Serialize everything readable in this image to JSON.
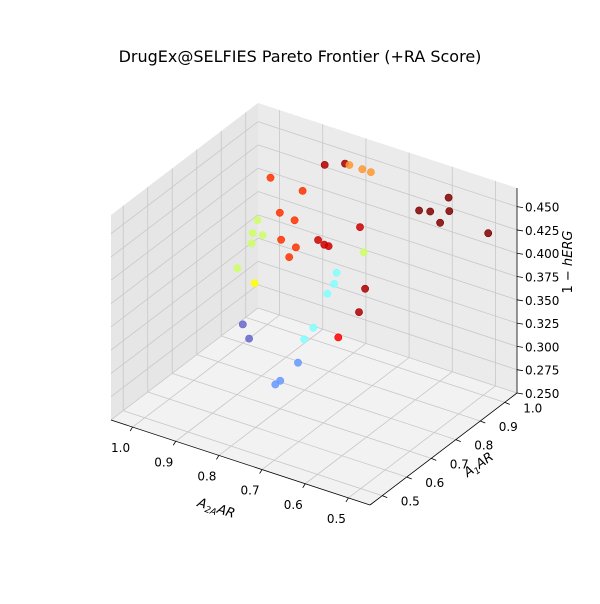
{
  "chart_data": {
    "type": "scatter",
    "projection": "3d",
    "title": "DrugEx@SELFIES Pareto Frontier (+RA Score)",
    "xlabel": "A2AAR",
    "ylabel": "A1AR",
    "zlabel": "1 − hERG",
    "xlim": [
      0.45,
      1.05
    ],
    "ylim": [
      0.45,
      1.05
    ],
    "zlim": [
      0.25,
      0.47
    ],
    "xticks": [
      0.5,
      0.6,
      0.7,
      0.8,
      0.9,
      1.0
    ],
    "yticks": [
      0.5,
      0.6,
      0.7,
      0.8,
      0.9,
      1.0
    ],
    "zticks": [
      0.25,
      0.275,
      0.3,
      0.325,
      0.35,
      0.375,
      0.4,
      0.425,
      0.45
    ],
    "xtick_labels": [
      "0.5",
      "0.6",
      "0.7",
      "0.8",
      "0.9",
      "1.0"
    ],
    "ytick_labels": [
      "0.5",
      "0.6",
      "0.7",
      "0.8",
      "0.9",
      "1.0"
    ],
    "ztick_labels": [
      "0.250",
      "0.275",
      "0.300",
      "0.325",
      "0.350",
      "0.375",
      "0.400",
      "0.425",
      "0.450"
    ],
    "grid": true,
    "legend": "none",
    "colormap": "jet",
    "points": [
      {
        "x": 0.46,
        "y": 0.95,
        "z": 0.44,
        "color": "#800000"
      },
      {
        "x": 0.55,
        "y": 0.95,
        "z": 0.45,
        "color": "#800000"
      },
      {
        "x": 0.56,
        "y": 0.93,
        "z": 0.44,
        "color": "#800000"
      },
      {
        "x": 0.58,
        "y": 1.0,
        "z": 0.45,
        "color": "#800000"
      },
      {
        "x": 0.6,
        "y": 0.96,
        "z": 0.44,
        "color": "#800000"
      },
      {
        "x": 0.62,
        "y": 0.95,
        "z": 0.44,
        "color": "#800000"
      },
      {
        "x": 0.62,
        "y": 0.62,
        "z": 0.37,
        "color": "#ff0000"
      },
      {
        "x": 0.64,
        "y": 0.74,
        "z": 0.37,
        "color": "#aa0000"
      },
      {
        "x": 0.66,
        "y": 0.8,
        "z": 0.38,
        "color": "#aa0000"
      },
      {
        "x": 0.76,
        "y": 1.0,
        "z": 0.45,
        "color": "#ff9933"
      },
      {
        "x": 0.78,
        "y": 1.0,
        "z": 0.45,
        "color": "#ff9933"
      },
      {
        "x": 0.81,
        "y": 1.0,
        "z": 0.45,
        "color": "#ff9933"
      },
      {
        "x": 0.82,
        "y": 1.0,
        "z": 0.45,
        "color": "#a60000"
      },
      {
        "x": 0.74,
        "y": 0.92,
        "z": 0.41,
        "color": "#cc0000"
      },
      {
        "x": 0.79,
        "y": 0.88,
        "z": 0.39,
        "color": "#cc0000"
      },
      {
        "x": 0.8,
        "y": 0.88,
        "z": 0.39,
        "color": "#cc0000"
      },
      {
        "x": 0.82,
        "y": 0.89,
        "z": 0.39,
        "color": "#cc0000"
      },
      {
        "x": 0.85,
        "y": 0.97,
        "z": 0.45,
        "color": "#b00000"
      },
      {
        "x": 0.72,
        "y": 0.9,
        "z": 0.39,
        "color": "#ccff66"
      },
      {
        "x": 0.76,
        "y": 0.86,
        "z": 0.37,
        "color": "#80ffff"
      },
      {
        "x": 0.76,
        "y": 0.85,
        "z": 0.36,
        "color": "#80ffff"
      },
      {
        "x": 0.77,
        "y": 0.84,
        "z": 0.35,
        "color": "#80ffff"
      },
      {
        "x": 0.78,
        "y": 0.8,
        "z": 0.32,
        "color": "#80ffff"
      },
      {
        "x": 0.79,
        "y": 0.78,
        "z": 0.31,
        "color": "#80ffff"
      },
      {
        "x": 0.77,
        "y": 0.72,
        "z": 0.3,
        "color": "#6699ff"
      },
      {
        "x": 0.8,
        "y": 0.7,
        "z": 0.28,
        "color": "#6699ff"
      },
      {
        "x": 0.8,
        "y": 0.68,
        "z": 0.28,
        "color": "#6699ff"
      },
      {
        "x": 0.89,
        "y": 0.95,
        "z": 0.42,
        "color": "#ff3300"
      },
      {
        "x": 0.88,
        "y": 0.9,
        "z": 0.4,
        "color": "#ff3300"
      },
      {
        "x": 0.86,
        "y": 0.87,
        "z": 0.38,
        "color": "#ff3300"
      },
      {
        "x": 0.87,
        "y": 0.86,
        "z": 0.37,
        "color": "#ff3300"
      },
      {
        "x": 0.9,
        "y": 0.88,
        "z": 0.38,
        "color": "#ff3300"
      },
      {
        "x": 0.92,
        "y": 0.91,
        "z": 0.4,
        "color": "#ff3300"
      },
      {
        "x": 0.97,
        "y": 0.96,
        "z": 0.42,
        "color": "#ff3300"
      },
      {
        "x": 0.96,
        "y": 0.91,
        "z": 0.37,
        "color": "#ccff66"
      },
      {
        "x": 0.98,
        "y": 0.9,
        "z": 0.36,
        "color": "#ccff66"
      },
      {
        "x": 0.99,
        "y": 0.86,
        "z": 0.34,
        "color": "#ccff66"
      },
      {
        "x": 1.0,
        "y": 0.96,
        "z": 0.37,
        "color": "#ccff66"
      },
      {
        "x": 1.0,
        "y": 0.94,
        "z": 0.36,
        "color": "#ccff66"
      },
      {
        "x": 0.95,
        "y": 0.86,
        "z": 0.33,
        "color": "#ffff00"
      },
      {
        "x": 0.94,
        "y": 0.82,
        "z": 0.28,
        "color": "#6666cc"
      },
      {
        "x": 1.0,
        "y": 0.9,
        "z": 0.27,
        "color": "#6666cc"
      }
    ]
  }
}
